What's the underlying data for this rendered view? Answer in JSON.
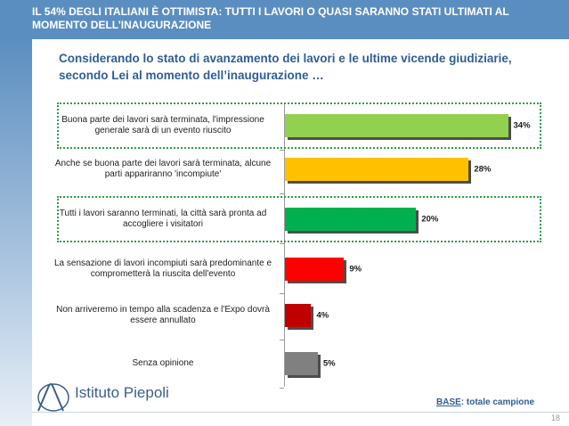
{
  "header": {
    "title": "IL 54% DEGLI ITALIANI È OTTIMISTA: TUTTI I LAVORI O QUASI SARANNO STATI ULTIMATI AL MOMENTO DELL’INAUGURAZIONE"
  },
  "subtitle": "Considerando lo stato di avanzamento dei lavori e le ultime vicende giudiziarie, secondo Lei al momento dell’inaugurazione …",
  "chart_data": {
    "type": "bar",
    "orientation": "horizontal",
    "categories": [
      "Buona parte dei lavori sarà terminata, l'impressione generale sarà di un evento riuscito",
      "Anche se buona parte dei lavori sarà terminata, alcune parti appariranno 'incompiute'",
      "Tutti i lavori saranno terminati, la città sarà pronta ad accogliere i visitatori",
      "La sensazione di lavori incompiuti sarà predominante e comprometterà la riuscita dell'evento",
      "Non arriveremo in tempo alla scadenza e l'Expo dovrà essere annullato",
      "Senza opinione"
    ],
    "values": [
      34,
      28,
      20,
      9,
      4,
      5
    ],
    "value_labels": [
      "34%",
      "28%",
      "20%",
      "9%",
      "4%",
      "5%"
    ],
    "colors": [
      "#92d050",
      "#ffc000",
      "#00b050",
      "#ff0000",
      "#c00000",
      "#808080"
    ],
    "xlim": [
      0,
      38
    ],
    "highlighted": [
      0,
      2
    ],
    "highlight_color": "#2e9c49"
  },
  "footer": {
    "logo_text": "Istituto Piepoli",
    "base_key": "BASE",
    "base_rest": ": totale campione",
    "page_number": "18"
  },
  "colors": {
    "header_bg": "#5b8ec0",
    "subtitle": "#2f5e93"
  }
}
